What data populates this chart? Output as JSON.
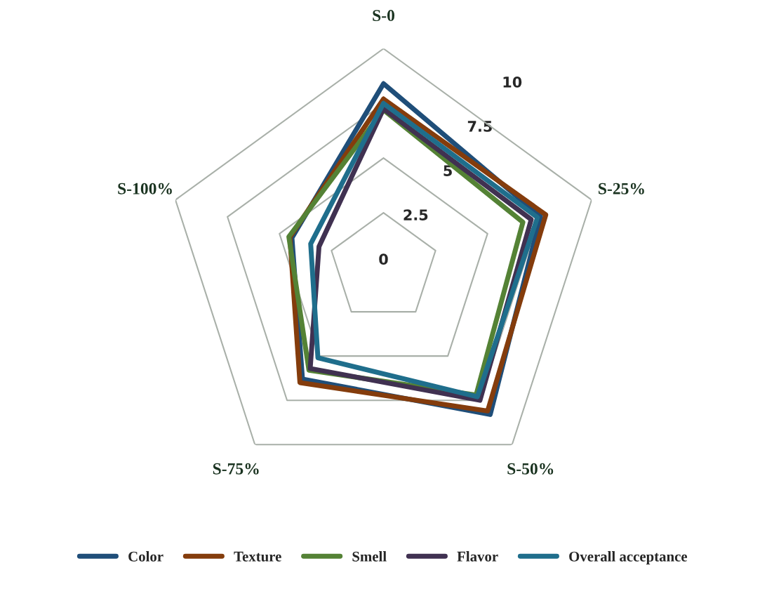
{
  "chart_data": {
    "type": "radar",
    "categories": [
      "S-0",
      "S-25%",
      "S-50%",
      "S-75%",
      "S-100%"
    ],
    "ylim": [
      0,
      10
    ],
    "yticks": [
      0,
      2.5,
      5,
      7.5,
      10
    ],
    "grid": true,
    "legend": "bottom",
    "series": [
      {
        "name": "Color",
        "color": "#1f4e79",
        "values": [
          8.4,
          7.55,
          8.3,
          6.3,
          4.4
        ]
      },
      {
        "name": "Texture",
        "color": "#843c0c",
        "values": [
          7.7,
          7.8,
          8.1,
          6.5,
          4.5
        ]
      },
      {
        "name": "Smell",
        "color": "#548235",
        "values": [
          7.2,
          6.7,
          7.2,
          5.8,
          4.55
        ]
      },
      {
        "name": "Flavor",
        "color": "#403151",
        "values": [
          7.25,
          7.1,
          7.5,
          5.7,
          3.1
        ]
      },
      {
        "name": "Overall acceptance",
        "color": "#1f6e8c",
        "values": [
          7.5,
          7.4,
          7.3,
          5.1,
          3.5
        ]
      }
    ]
  }
}
